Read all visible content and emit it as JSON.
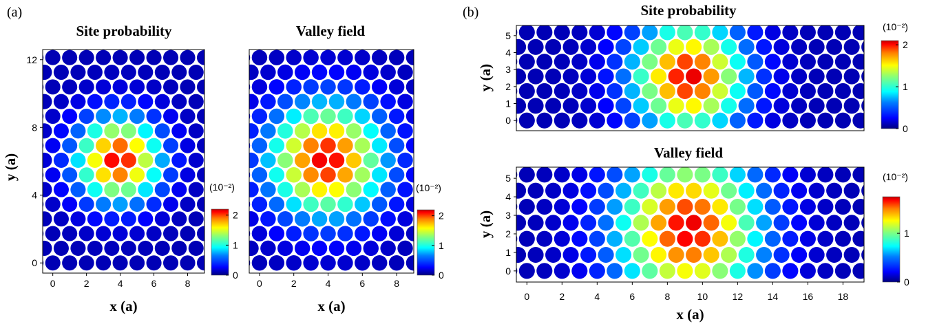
{
  "panel_labels": [
    "(a)",
    "(b)"
  ],
  "colormap": [
    "#00007f",
    "#0000ff",
    "#0080ff",
    "#00ffff",
    "#80ff80",
    "#ffff00",
    "#ff8000",
    "#ff0000",
    "#c00000"
  ],
  "chart_data": [
    {
      "type": "heatmap",
      "panel": "(a)",
      "title": "Site probability",
      "xlabel": "x (a)",
      "ylabel": "y (a)",
      "xlim": [
        -0.6,
        9.0
      ],
      "ylim": [
        -0.6,
        12.6
      ],
      "xticks": [
        0,
        2,
        4,
        6,
        8
      ],
      "yticks": [
        0,
        4,
        8,
        12
      ],
      "lattice": {
        "nx": 9,
        "ny": 15,
        "dx": 1.0,
        "dy": 0.866,
        "row_offset": 0.5,
        "center": [
          3.9,
          6.1
        ],
        "sigma": 1.7
      },
      "colorbar": {
        "label": "(10⁻²)",
        "ticks": [
          0,
          1,
          2
        ],
        "range": [
          0,
          2.2
        ]
      }
    },
    {
      "type": "heatmap",
      "panel": "(a)",
      "title": "Valley field",
      "xlabel": "x (a)",
      "ylabel": "",
      "xlim": [
        -0.6,
        9.0
      ],
      "ylim": [
        -0.6,
        12.6
      ],
      "xticks": [
        0,
        2,
        4,
        6,
        8
      ],
      "yticks": [],
      "lattice": {
        "nx": 9,
        "ny": 15,
        "dx": 1.0,
        "dy": 0.866,
        "row_offset": 0.5,
        "center": [
          3.9,
          6.1
        ],
        "sigma": 2.3
      },
      "colorbar": {
        "label": "(10⁻²)",
        "ticks": [
          0,
          1,
          2
        ],
        "range": [
          0,
          2.2
        ]
      }
    },
    {
      "type": "heatmap",
      "panel": "(b)",
      "title": "Site probability",
      "xlabel": "",
      "ylabel": "y (a)",
      "xlim": [
        -0.6,
        19.2
      ],
      "ylim": [
        -0.6,
        5.6
      ],
      "xticks": [],
      "yticks": [
        0,
        1,
        2,
        3,
        4,
        5
      ],
      "lattice": {
        "nx": 20,
        "ny": 7,
        "dx": 1.0,
        "dy": 0.866,
        "row_offset": 0.5,
        "center": [
          9.2,
          2.6
        ],
        "sigma": 2.2
      },
      "colorbar": {
        "label": "(10⁻²)",
        "ticks": [
          0,
          1,
          2
        ],
        "range": [
          0,
          2.1
        ]
      }
    },
    {
      "type": "heatmap",
      "panel": "(b)",
      "title": "Valley field",
      "xlabel": "x (a)",
      "ylabel": "y (a)",
      "xlim": [
        -0.6,
        19.2
      ],
      "ylim": [
        -0.6,
        5.6
      ],
      "xticks": [
        0,
        2,
        4,
        6,
        8,
        10,
        12,
        14,
        16,
        18
      ],
      "yticks": [
        0,
        1,
        2,
        3,
        4,
        5
      ],
      "lattice": {
        "nx": 20,
        "ny": 7,
        "dx": 1.0,
        "dy": 0.866,
        "row_offset": 0.5,
        "center": [
          9.2,
          2.3
        ],
        "sigma": 2.8
      },
      "colorbar": {
        "label": "(10⁻²)",
        "ticks": [
          0,
          1
        ],
        "range": [
          0,
          1.75
        ]
      }
    }
  ]
}
